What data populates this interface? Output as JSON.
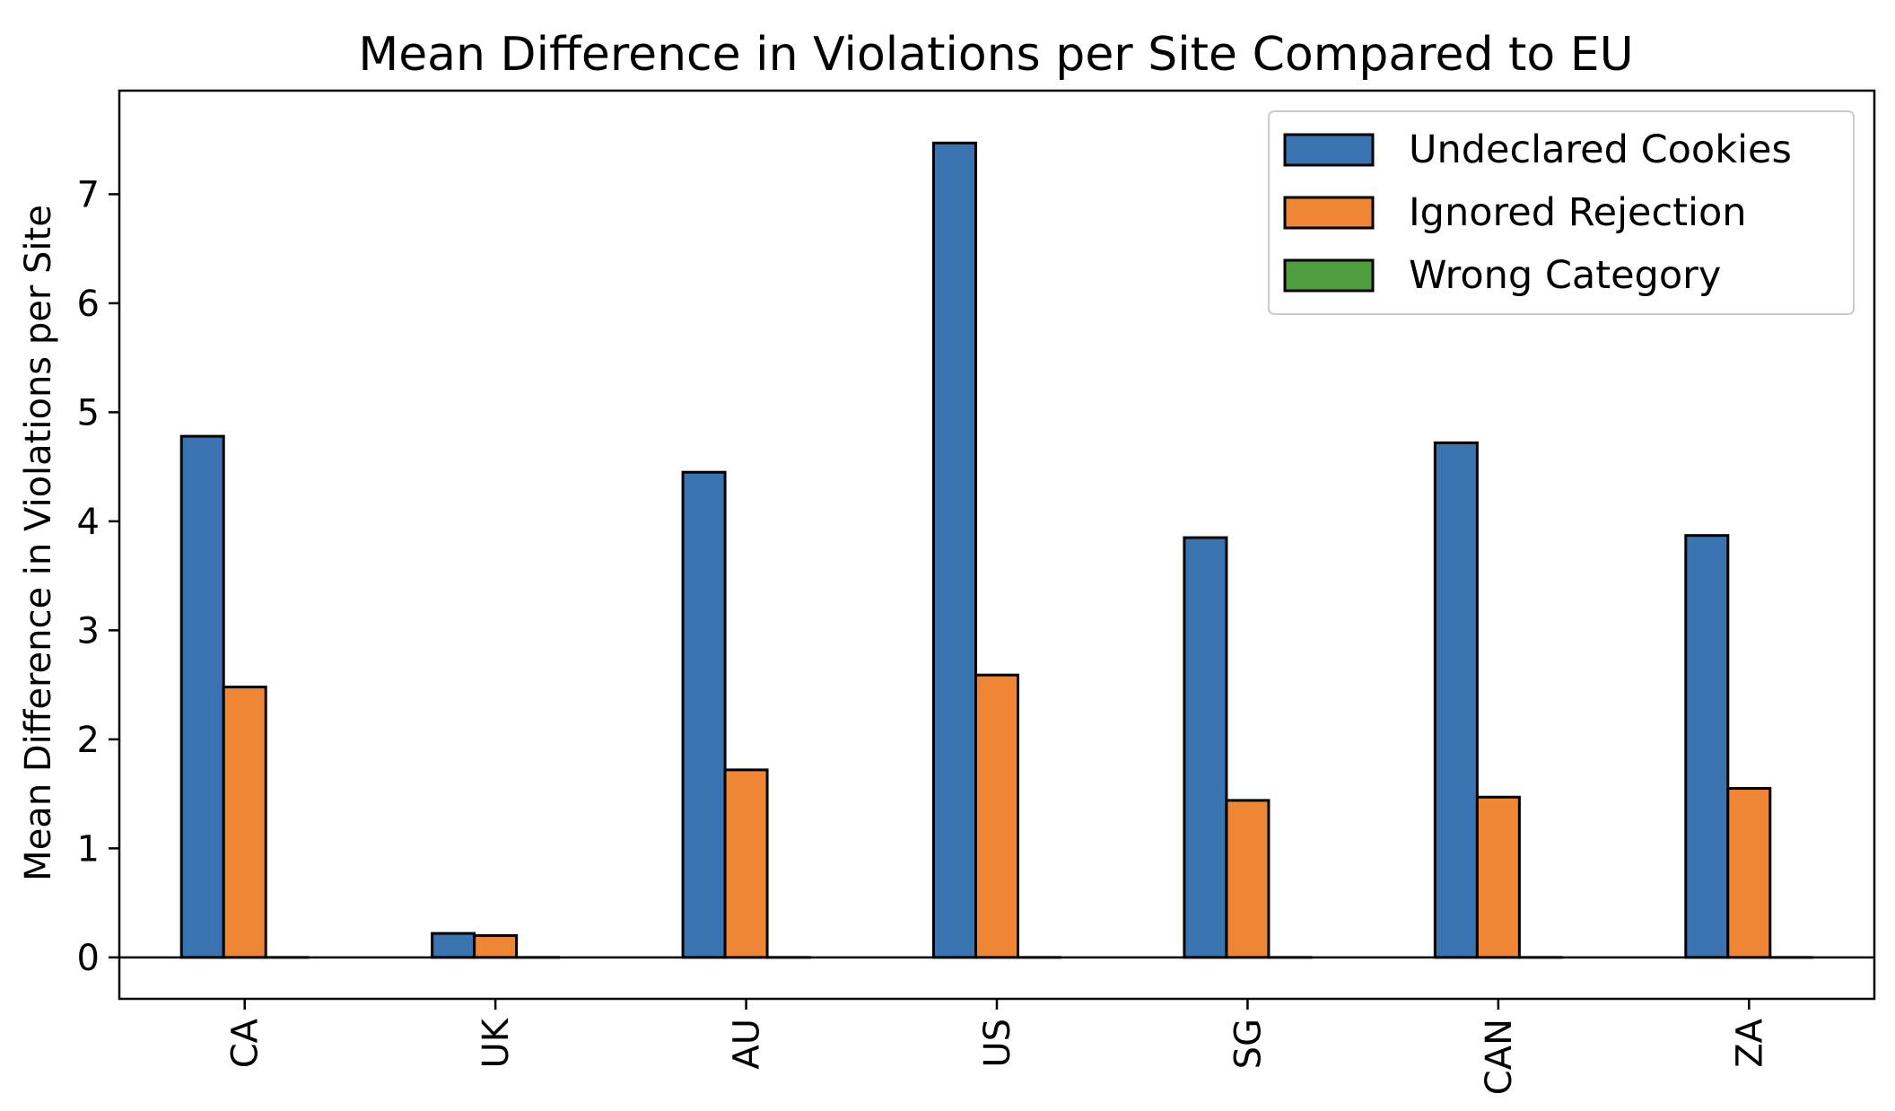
{
  "chart_data": {
    "type": "bar",
    "title": "Mean Difference in Violations per Site Compared to EU",
    "xlabel": "",
    "ylabel": "Mean Difference in Violations per Site",
    "categories": [
      "CA",
      "UK",
      "AU",
      "US",
      "SG",
      "CAN",
      "ZA"
    ],
    "series": [
      {
        "name": "Undeclared Cookies",
        "color": "#3a74b0",
        "values": [
          4.78,
          0.22,
          4.45,
          7.47,
          3.85,
          4.72,
          3.87
        ]
      },
      {
        "name": "Ignored Rejection",
        "color": "#ef8636",
        "values": [
          2.48,
          0.2,
          1.72,
          2.59,
          1.44,
          1.47,
          1.55
        ]
      },
      {
        "name": "Wrong Category",
        "color": "#519e3e",
        "values": [
          0.0,
          0.0,
          0.0,
          0.0,
          0.0,
          0.0,
          0.0
        ]
      }
    ],
    "yticks": [
      0,
      1,
      2,
      3,
      4,
      5,
      6,
      7
    ],
    "ylim": [
      -0.38,
      7.95
    ],
    "grid": false,
    "zero_line": true,
    "legend_position": "top-right",
    "edge_color": "#000000"
  }
}
